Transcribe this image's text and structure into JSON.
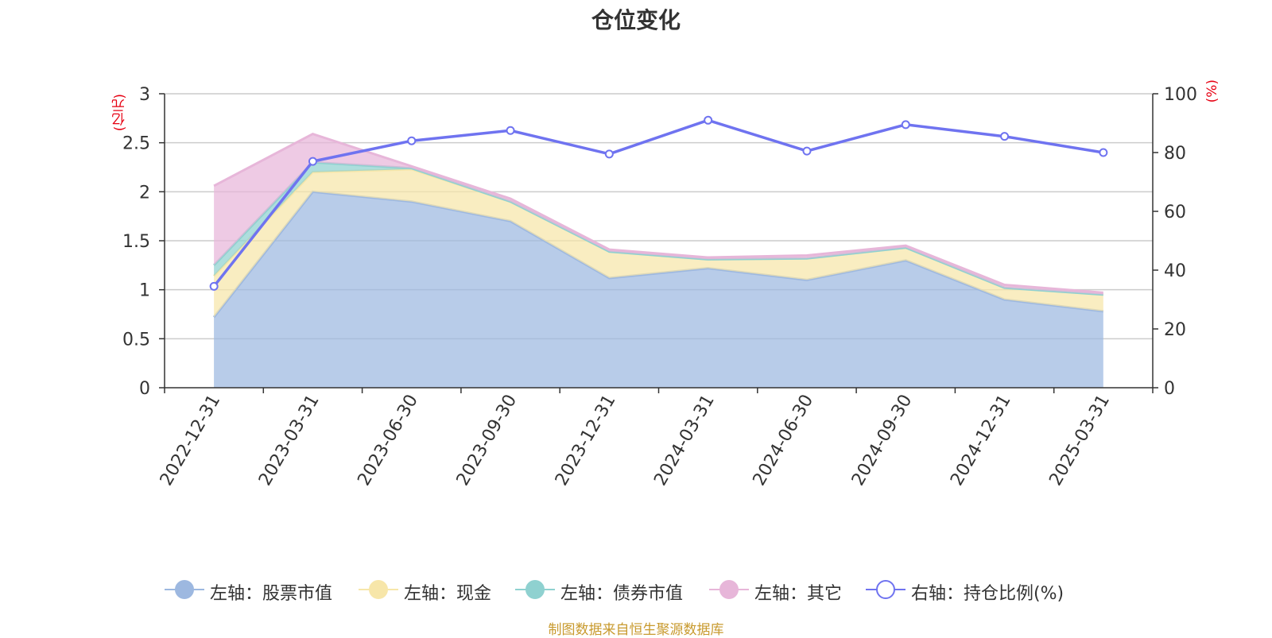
{
  "title": "仓位变化",
  "source_note": "制图数据来自恒生聚源数据库",
  "chart_data": {
    "type": "area",
    "categories": [
      "2022-12-31",
      "2023-03-31",
      "2023-06-30",
      "2023-09-30",
      "2023-12-31",
      "2024-03-31",
      "2024-06-30",
      "2024-09-30",
      "2024-12-31",
      "2025-03-31"
    ],
    "left_axis": {
      "label": "(亿元)",
      "ylim": [
        0,
        3
      ],
      "ticks": [
        "0",
        "0.5",
        "1",
        "1.5",
        "2",
        "2.5",
        "3"
      ]
    },
    "right_axis": {
      "label": "(%)",
      "ylim": [
        0,
        100
      ],
      "ticks": [
        "0",
        "20",
        "40",
        "60",
        "80",
        "100"
      ]
    },
    "grid": true,
    "legend_position": "bottom",
    "stacked_series": [
      {
        "name": "左轴：股票市值",
        "axis": "left",
        "color": "#9db8e0",
        "values": [
          0.72,
          2.0,
          1.9,
          1.7,
          1.12,
          1.22,
          1.1,
          1.3,
          0.9,
          0.78
        ]
      },
      {
        "name": "左轴：现金",
        "axis": "left",
        "color": "#f7e6a9",
        "values": [
          0.42,
          0.2,
          0.33,
          0.2,
          0.27,
          0.09,
          0.22,
          0.13,
          0.12,
          0.17
        ]
      },
      {
        "name": "左轴：债券市值",
        "axis": "left",
        "color": "#8fd1d0",
        "values": [
          0.11,
          0.1,
          0.01,
          0.0,
          0.0,
          0.0,
          0.0,
          0.0,
          0.0,
          0.0
        ]
      },
      {
        "name": "左轴：其它",
        "axis": "left",
        "color": "#e7b6d9",
        "values": [
          0.81,
          0.29,
          0.02,
          0.03,
          0.02,
          0.02,
          0.03,
          0.02,
          0.03,
          0.02
        ]
      }
    ],
    "line_series": [
      {
        "name": "右轴：持仓比例(%)",
        "axis": "right",
        "color": "#6f73f0",
        "values": [
          34.5,
          77.0,
          84.0,
          87.5,
          79.5,
          91.0,
          80.5,
          89.5,
          85.5,
          80.0
        ]
      }
    ]
  }
}
